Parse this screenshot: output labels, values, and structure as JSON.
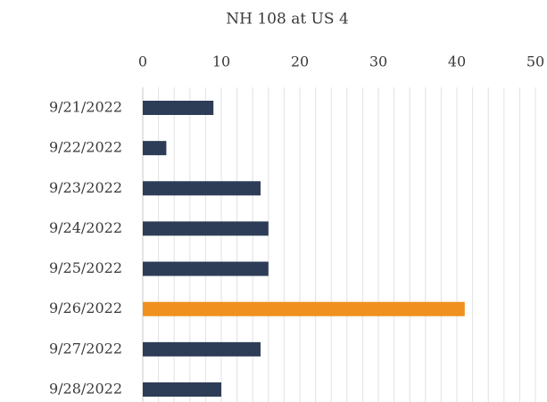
{
  "chart_data": {
    "type": "barh",
    "title": "NH 108 at US 4",
    "categories": [
      "9/21/2022",
      "9/22/2022",
      "9/23/2022",
      "9/24/2022",
      "9/25/2022",
      "9/26/2022",
      "9/27/2022",
      "9/28/2022"
    ],
    "values": [
      9,
      3,
      15,
      16,
      16,
      41,
      15,
      10
    ],
    "colors": [
      "#2e3d57",
      "#2e3d57",
      "#2e3d57",
      "#2e3d57",
      "#2e3d57",
      "#f0901e",
      "#2e3d57",
      "#2e3d57"
    ],
    "xlim": [
      0,
      50
    ],
    "xticks": [
      0,
      10,
      20,
      30,
      40,
      50
    ],
    "xminor_ticks": [
      2,
      4,
      6,
      8,
      12,
      14,
      16,
      18,
      22,
      24,
      26,
      28,
      32,
      34,
      36,
      38,
      42,
      44,
      46,
      48
    ],
    "grid": true,
    "x_axis_position": "top"
  }
}
